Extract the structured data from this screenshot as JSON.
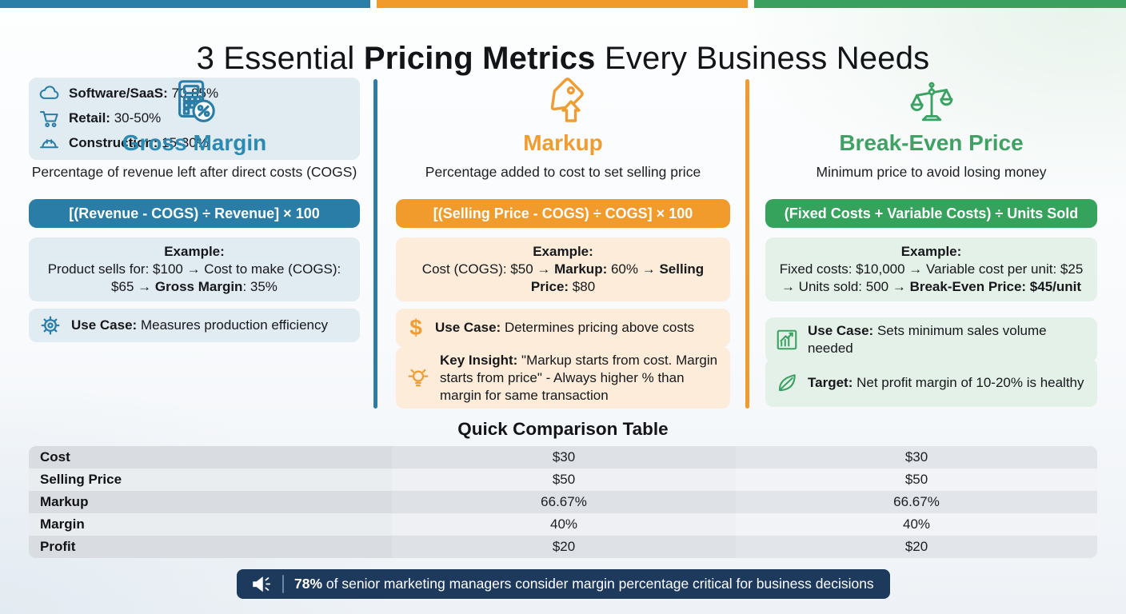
{
  "palette": {
    "teal": "#2a7da6",
    "orange": "#f09b2b",
    "green": "#36a35d",
    "navy": "#1d3a5d",
    "light_teal_box": "#e1ebf2",
    "light_orange_box": "#fcecd9",
    "light_green_box": "#e4f1e8"
  },
  "header": {
    "title_prefix": "3 Essential",
    "title_highlight": "Pricing Metrics",
    "title_suffix": "Every Business Needs"
  },
  "columns": [
    {
      "key": "gross-margin",
      "icon": "calculator-percent-icon",
      "title": "Gross Margin",
      "subtitle": "Percentage of revenue left after direct costs (COGS)",
      "formula": "[(Revenue - COGS) ÷ Revenue] × 100",
      "example_label": "Example:",
      "example_segments": [
        {
          "text": "Product sells for: $100 → Cost to make (COGS): $65 → ",
          "bold": false
        },
        {
          "text": "Gross Margin",
          "bold": true
        },
        {
          "text": ": 35%",
          "bold": false
        }
      ],
      "use_case_label": "Use Case:",
      "use_case_text": "Measures production efficiency",
      "benchmarks": [
        {
          "icon": "cloud-icon",
          "label": "Software/SaaS:",
          "value": "70-85%"
        },
        {
          "icon": "shopping-cart-icon",
          "label": "Retail:",
          "value": "30-50%"
        },
        {
          "icon": "hard-hat-icon",
          "label": "Construction:",
          "value": "15-30%"
        }
      ]
    },
    {
      "key": "markup",
      "icon": "price-tag-up-icon",
      "title": "Markup",
      "subtitle": "Percentage added to cost to set selling price",
      "formula": "[(Selling Price - COGS) ÷ COGS] × 100",
      "example_label": "Example:",
      "example_segments": [
        {
          "text": "Cost (COGS): $50 → ",
          "bold": false
        },
        {
          "text": "Markup:",
          "bold": true
        },
        {
          "text": " 60% → ",
          "bold": false
        },
        {
          "text": "Selling Price:",
          "bold": true
        },
        {
          "text": " $80",
          "bold": false
        }
      ],
      "use_case_label": "Use Case:",
      "use_case_text": "Determines pricing above costs",
      "insight_label": "Key Insight:",
      "insight_text": "\"Markup starts from cost. Margin starts from price\" - Always higher % than margin for same transaction"
    },
    {
      "key": "break-even-price",
      "icon": "balance-scale-icon",
      "title": "Break-Even Price",
      "subtitle": "Minimum price to avoid losing money",
      "formula": "(Fixed Costs + Variable Costs) ÷ Units Sold",
      "example_label": "Example:",
      "example_segments": [
        {
          "text": "Fixed costs: $10,000 → Variable cost per unit: $25 → Units sold: 500 → ",
          "bold": false
        },
        {
          "text": "Break-Even Price: $45/unit",
          "bold": true
        }
      ],
      "use_case_label": "Use Case:",
      "use_case_text": "Sets minimum sales volume needed",
      "target_label": "Target:",
      "target_text": "Net profit margin of 10-20% is healthy"
    }
  ],
  "comparison": {
    "title": "Quick Comparison Table",
    "rows": [
      {
        "label": "Cost",
        "values": [
          "$30",
          "$30"
        ]
      },
      {
        "label": "Selling Price",
        "values": [
          "$50",
          "$50"
        ]
      },
      {
        "label": "Markup",
        "values": [
          "66.67%",
          "66.67%"
        ]
      },
      {
        "label": "Margin",
        "values": [
          "40%",
          "40%"
        ]
      },
      {
        "label": "Profit",
        "values": [
          "$20",
          "$20"
        ]
      }
    ]
  },
  "stat_banner": {
    "icon": "megaphone-icon",
    "stat": "78%",
    "text": "of senior marketing managers consider margin percentage critical for business decisions"
  }
}
